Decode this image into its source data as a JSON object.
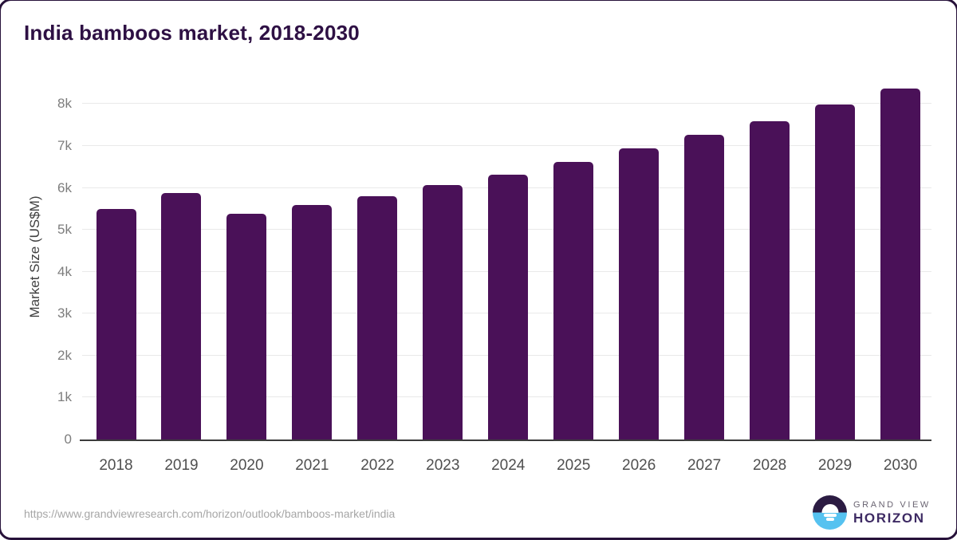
{
  "header": {
    "title": "India bamboos market, 2018-2030"
  },
  "chart_data": {
    "type": "bar",
    "title": "India bamboos market, 2018-2030",
    "categories": [
      "2018",
      "2019",
      "2020",
      "2021",
      "2022",
      "2023",
      "2024",
      "2025",
      "2026",
      "2027",
      "2028",
      "2029",
      "2030"
    ],
    "values": [
      5500,
      5870,
      5390,
      5590,
      5810,
      6060,
      6320,
      6620,
      6940,
      7260,
      7600,
      7990,
      8370
    ],
    "xlabel": "",
    "ylabel": "Market Size (US$M)",
    "ylim": [
      0,
      8675
    ],
    "yticks": [
      0,
      1000,
      2000,
      3000,
      4000,
      5000,
      6000,
      7000,
      8000
    ],
    "ytick_labels": [
      "0",
      "1k",
      "2k",
      "3k",
      "4k",
      "5k",
      "6k",
      "7k",
      "8k"
    ],
    "grid": "horizontal-only",
    "legend": "none",
    "bar_color": "#4a1158"
  },
  "colors": {
    "bar": "#4a1158",
    "title": "#2e1044",
    "gridline": "#e9e9e9",
    "axis_line": "#3c3c3c",
    "x_tick_text": "#4f4f4f",
    "y_tick_text": "#7d7d7d",
    "frame_border": "#27123a",
    "logo_dark": "#2b1b42",
    "logo_blue": "#56c2f0",
    "logo_horizon_text": "#3d2a63",
    "logo_grandview_text": "#6a6472",
    "url_text": "#a6a6a6"
  },
  "footer": {
    "source_url": "https://www.grandviewresearch.com/horizon/outlook/bamboos-market/india",
    "logo": {
      "icon": "horizon-sun-icon",
      "brand_line1": "GRAND VIEW",
      "brand_line2": "HORIZON"
    }
  }
}
